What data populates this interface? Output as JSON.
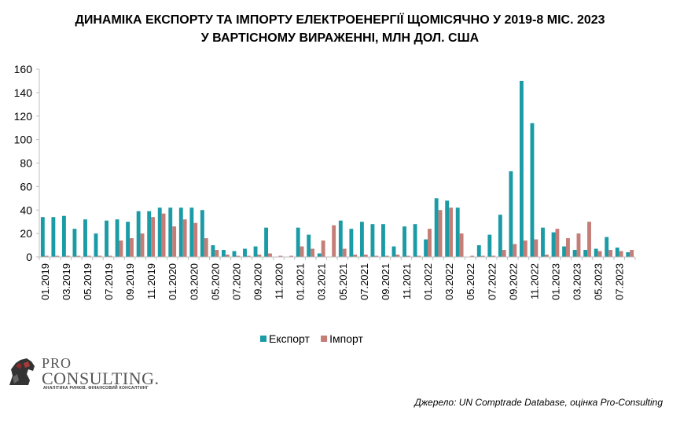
{
  "title": {
    "line1": "ДИНАМІКА ЕКСПОРТУ ТА ІМПОРТУ ЕЛЕКТРОЕНЕРГІЇ ЩОМІСЯЧНО У 2019-8 МІС. 2023",
    "line2": "У ВАРТІСНОМУ ВИРАЖЕННІ, МЛН ДОЛ. США"
  },
  "source": "Джерело: UN Comptrade Database, оцінка Pro-Consulting",
  "logo": {
    "line1": "PRO",
    "line2": "CONSULTING.",
    "tagline": "АНАЛІТИКА РИНКІВ. ФІНАНСОВИЙ КОНСАЛТИНГ"
  },
  "colors": {
    "export": "#1a9ba6",
    "import": "#c47d77",
    "axis": "#bfbfbf"
  },
  "chart_data": {
    "type": "bar",
    "title": "ДИНАМІКА ЕКСПОРТУ ТА ІМПОРТУ ЕЛЕКТРОЕНЕРГІЇ ЩОМІСЯЧНО У 2019-8 МІС. 2023 У ВАРТІСНОМУ ВИРАЖЕННІ, МЛН ДОЛ. США",
    "ylim": [
      0,
      160
    ],
    "yticks": [
      0,
      20,
      40,
      60,
      80,
      100,
      120,
      140,
      160
    ],
    "legend_position": "bottom",
    "grid": false,
    "categories": [
      "01.2019",
      "02.2019",
      "03.2019",
      "04.2019",
      "05.2019",
      "06.2019",
      "07.2019",
      "08.2019",
      "09.2019",
      "10.2019",
      "11.2019",
      "12.2019",
      "01.2020",
      "02.2020",
      "03.2020",
      "04.2020",
      "05.2020",
      "06.2020",
      "07.2020",
      "08.2020",
      "09.2020",
      "10.2020",
      "11.2020",
      "12.2020",
      "01.2021",
      "02.2021",
      "03.2021",
      "04.2021",
      "05.2021",
      "06.2021",
      "07.2021",
      "08.2021",
      "09.2021",
      "10.2021",
      "11.2021",
      "12.2021",
      "01.2022",
      "02.2022",
      "03.2022",
      "04.2022",
      "05.2022",
      "06.2022",
      "07.2022",
      "08.2022",
      "09.2022",
      "10.2022",
      "11.2022",
      "12.2022",
      "01.2023",
      "02.2023",
      "03.2023",
      "04.2023",
      "05.2023",
      "06.2023",
      "07.2023",
      "08.2023"
    ],
    "tick_labels": [
      "01.2019",
      "",
      "03.2019",
      "",
      "05.2019",
      "",
      "07.2019",
      "",
      "09.2019",
      "",
      "11.2019",
      "",
      "01.2020",
      "",
      "03.2020",
      "",
      "05.2020",
      "",
      "07.2020",
      "",
      "09.2020",
      "",
      "11.2020",
      "",
      "01.2021",
      "",
      "03.2021",
      "",
      "05.2021",
      "",
      "07.2021",
      "",
      "09.2021",
      "",
      "11.2021",
      "",
      "01.2022",
      "",
      "03.2022",
      "",
      "05.2022",
      "",
      "07.2022",
      "",
      "09.2022",
      "",
      "11.2022",
      "",
      "01.2023",
      "",
      "03.2023",
      "",
      "05.2023",
      "",
      "07.2023",
      ""
    ],
    "series": [
      {
        "name": "Експорт",
        "values": [
          34,
          34,
          35,
          24,
          32,
          20,
          31,
          32,
          30,
          39,
          39,
          42,
          42,
          42,
          42,
          40,
          10,
          6,
          5,
          7,
          9,
          25,
          0,
          0,
          25,
          19,
          3,
          0,
          31,
          24,
          30,
          28,
          28,
          9,
          26,
          28,
          15,
          50,
          48,
          42,
          0,
          10,
          19,
          36,
          73,
          150,
          114,
          25,
          21,
          9,
          6,
          6,
          7,
          17,
          8,
          4
        ]
      },
      {
        "name": "Імпорт",
        "values": [
          1,
          1,
          1,
          1,
          1,
          1,
          1,
          14,
          16,
          20,
          34,
          37,
          26,
          32,
          29,
          16,
          6,
          2,
          1,
          1,
          2,
          3,
          1,
          1,
          9,
          7,
          14,
          27,
          7,
          2,
          2,
          1,
          1,
          2,
          1,
          1,
          24,
          40,
          42,
          20,
          1,
          1,
          1,
          6,
          11,
          14,
          15,
          2,
          24,
          16,
          20,
          30,
          5,
          6,
          5,
          6
        ]
      }
    ]
  }
}
